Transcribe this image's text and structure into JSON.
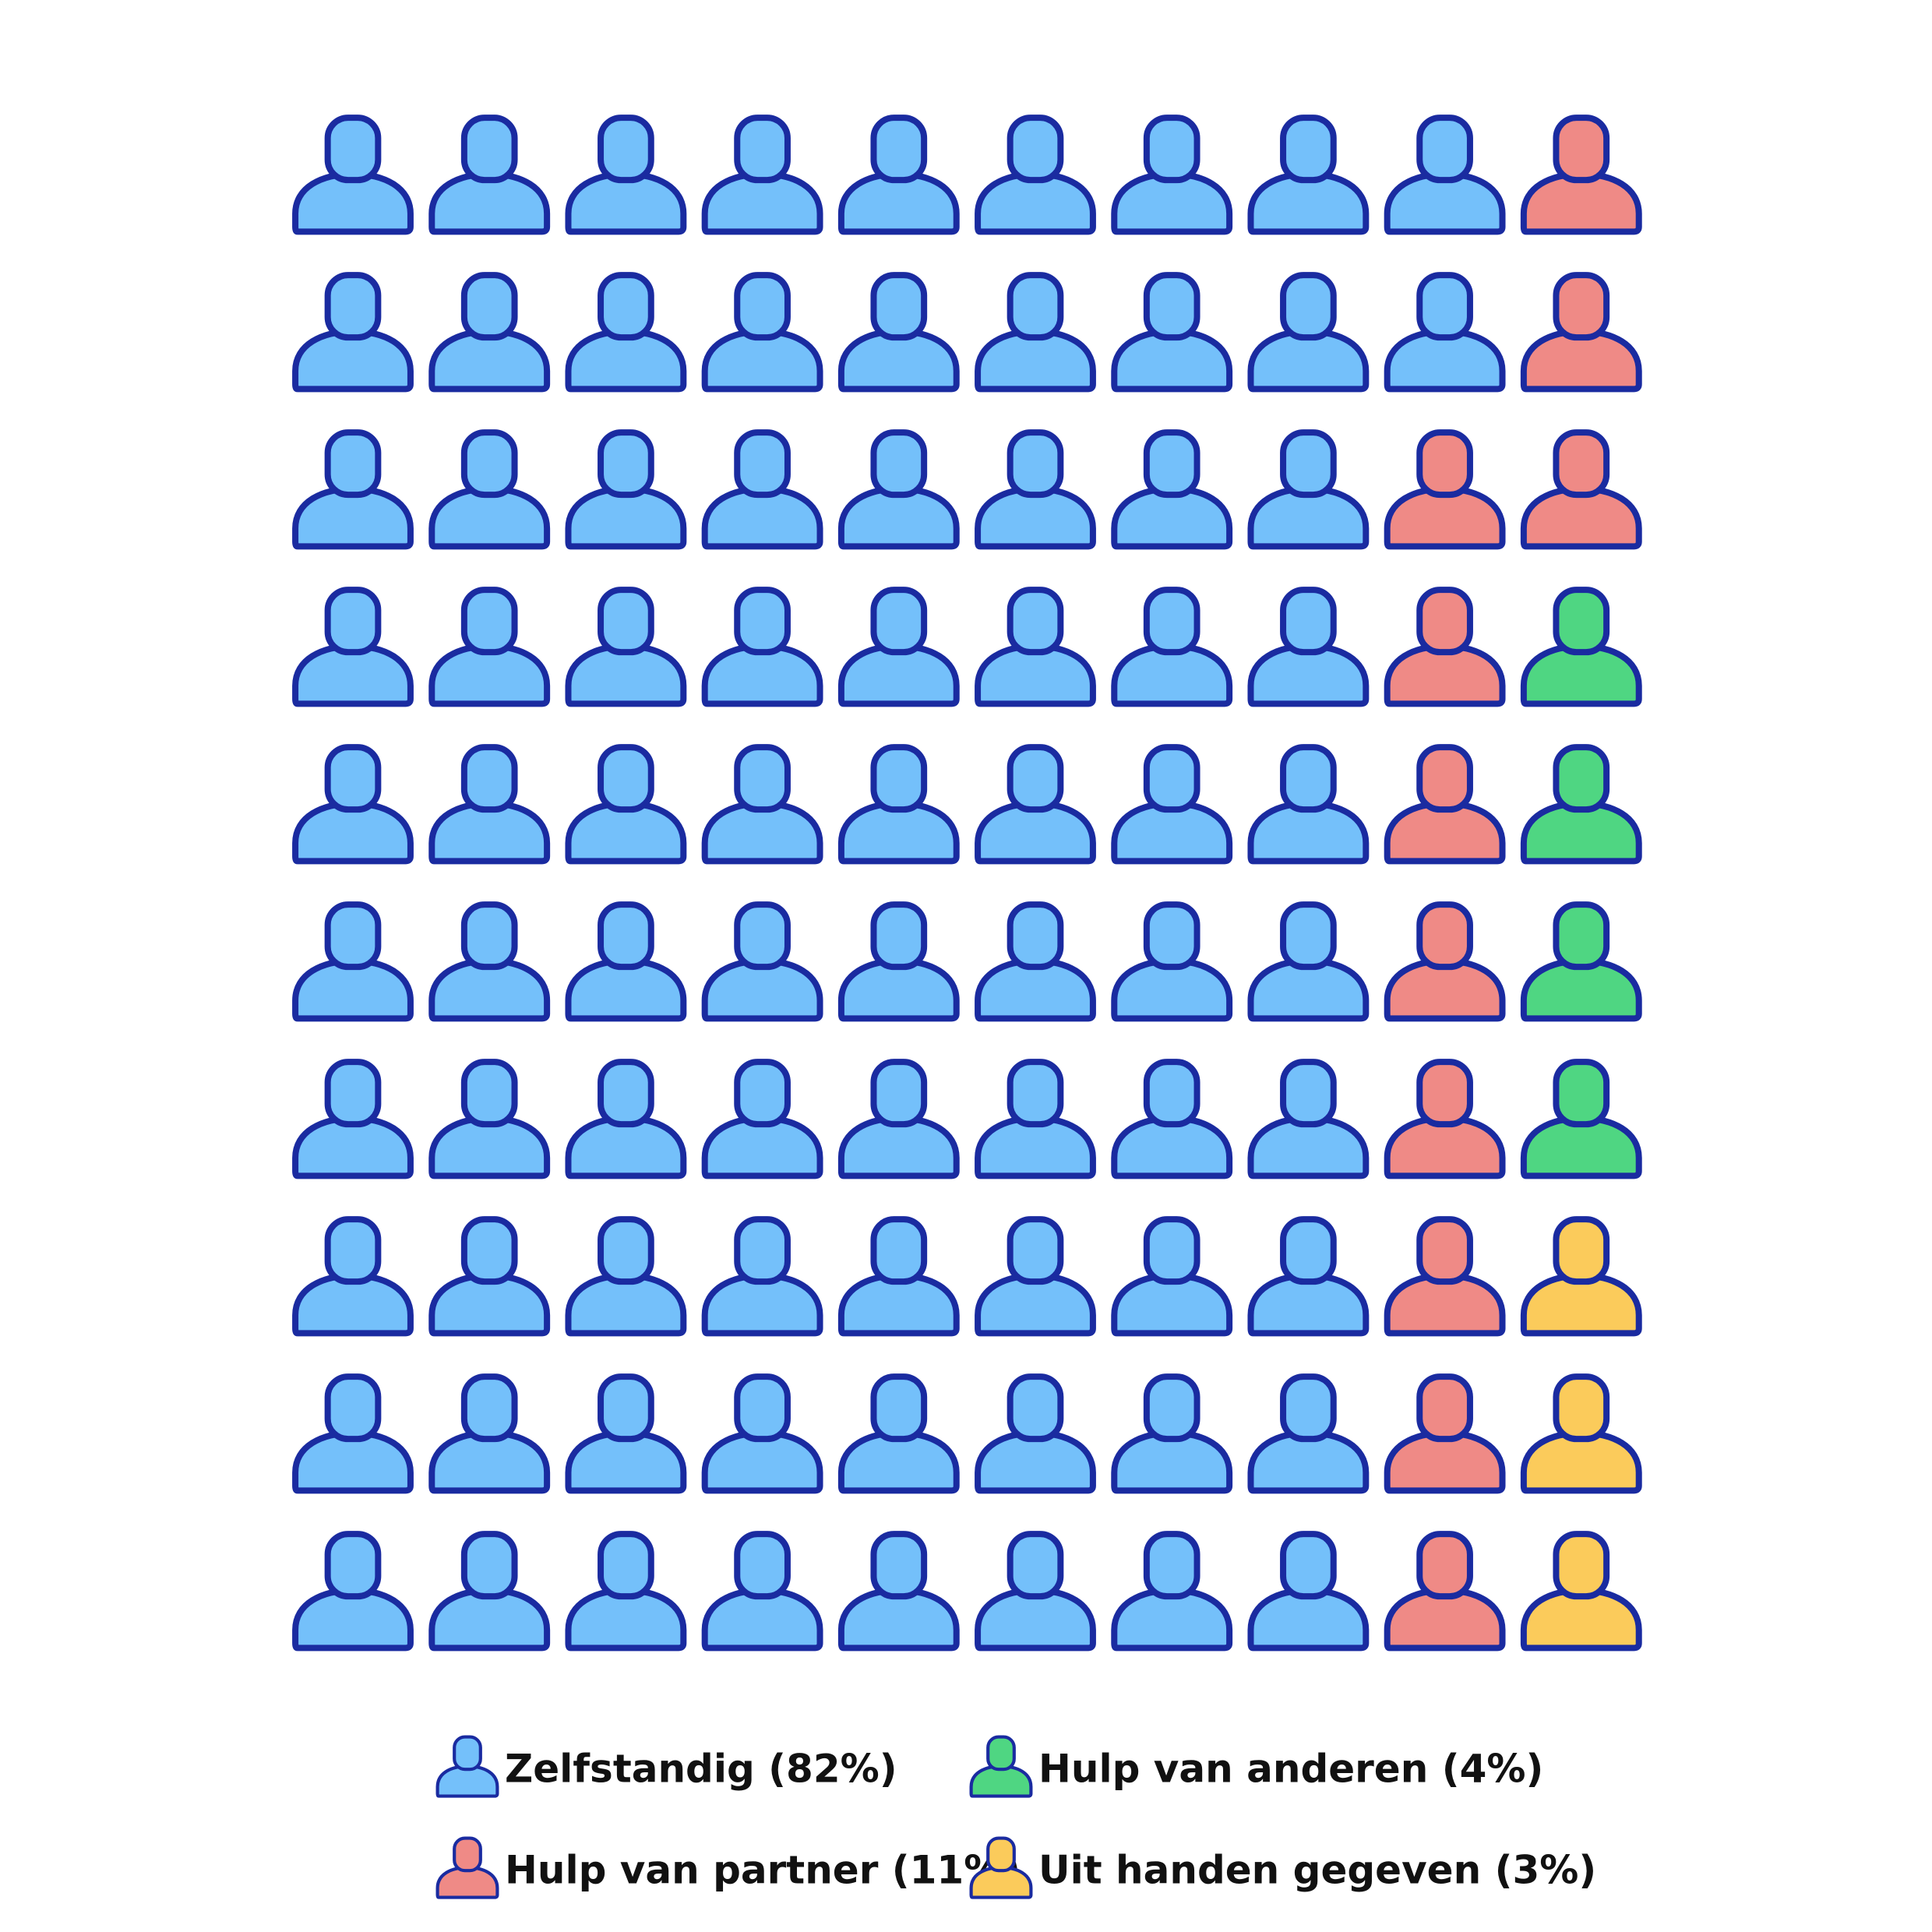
{
  "chart_data": {
    "type": "waffle",
    "series": [
      {
        "name": "Zelfstandig (82%)",
        "color": "#74c0fa",
        "values": 82
      },
      {
        "name": "Hulp van partner (11%)",
        "color": "#ef8a86",
        "values": 11
      },
      {
        "name": "Hulp van anderen (4%)",
        "color": "#4fd682",
        "values": 4
      },
      {
        "name": "Uit handen gegeven (3%)",
        "color": "#fbcb5b",
        "values": 3
      }
    ],
    "outline": "#1a2ba0"
  }
}
